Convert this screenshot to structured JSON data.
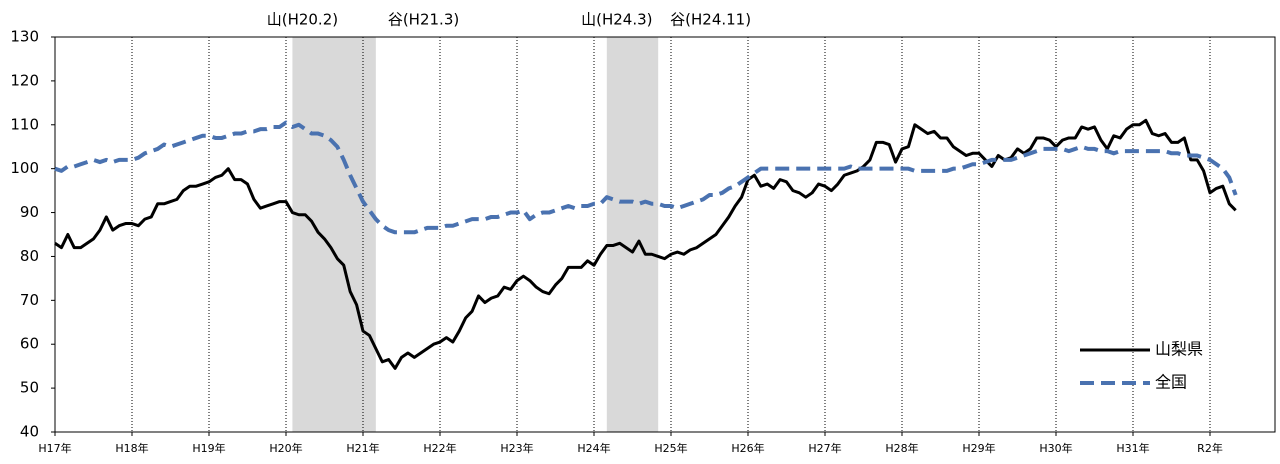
{
  "chart_data": {
    "type": "line",
    "categories": [
      "H17年",
      null,
      null,
      null,
      null,
      null,
      null,
      null,
      null,
      null,
      null,
      null,
      "H18年",
      null,
      null,
      null,
      null,
      null,
      null,
      null,
      null,
      null,
      null,
      null,
      "H19年",
      null,
      null,
      null,
      null,
      null,
      null,
      null,
      null,
      null,
      null,
      null,
      "H20年",
      null,
      null,
      null,
      null,
      null,
      null,
      null,
      null,
      null,
      null,
      null,
      "H21年",
      null,
      null,
      null,
      null,
      null,
      null,
      null,
      null,
      null,
      null,
      null,
      "H22年",
      null,
      null,
      null,
      null,
      null,
      null,
      null,
      null,
      null,
      null,
      null,
      "H23年",
      null,
      null,
      null,
      null,
      null,
      null,
      null,
      null,
      null,
      null,
      null,
      "H24年",
      null,
      null,
      null,
      null,
      null,
      null,
      null,
      null,
      null,
      null,
      null,
      "H25年",
      null,
      null,
      null,
      null,
      null,
      null,
      null,
      null,
      null,
      null,
      null,
      "H26年",
      null,
      null,
      null,
      null,
      null,
      null,
      null,
      null,
      null,
      null,
      null,
      "H27年",
      null,
      null,
      null,
      null,
      null,
      null,
      null,
      null,
      null,
      null,
      null,
      "H28年",
      null,
      null,
      null,
      null,
      null,
      null,
      null,
      null,
      null,
      null,
      null,
      "H29年",
      null,
      null,
      null,
      null,
      null,
      null,
      null,
      null,
      null,
      null,
      null,
      "H30年",
      null,
      null,
      null,
      null,
      null,
      null,
      null,
      null,
      null,
      null,
      null,
      "H31年",
      null,
      null,
      null,
      null,
      null,
      null,
      null,
      null,
      null,
      null,
      null,
      "R2年",
      null,
      null,
      null,
      null
    ],
    "series": [
      {
        "name": "山梨県",
        "color": "#000000",
        "dash": false,
        "values": [
          83,
          82,
          85,
          82,
          82,
          83,
          84,
          86,
          89,
          86,
          87,
          87.5,
          87.5,
          87,
          88.5,
          89,
          92,
          92,
          92.5,
          93,
          95,
          96,
          96,
          96.5,
          97,
          98,
          98.5,
          100,
          97.5,
          97.5,
          96.5,
          93,
          91,
          91.5,
          92,
          92.5,
          92.5,
          90,
          89.5,
          89.5,
          88,
          85.5,
          84,
          82,
          79.5,
          78,
          72,
          69,
          63,
          62,
          59,
          56,
          56.5,
          54.5,
          57,
          58,
          57,
          58,
          59,
          60,
          60.5,
          61.5,
          60.5,
          63,
          66,
          67.5,
          71,
          69.5,
          70.5,
          71,
          73,
          72.5,
          74.5,
          75.5,
          74.5,
          73,
          72,
          71.5,
          73.5,
          75,
          77.5,
          77.5,
          77.5,
          79,
          78,
          80.5,
          82.5,
          82.5,
          83,
          82,
          81,
          83.5,
          80.5,
          80.5,
          80,
          79.5,
          80.5,
          81,
          80.5,
          81.5,
          82,
          83,
          84,
          85,
          87,
          89,
          91.5,
          93.5,
          97.5,
          98.5,
          96,
          96.5,
          95.5,
          97.5,
          97,
          95,
          94.5,
          93.5,
          94.5,
          96.5,
          96,
          95,
          96.5,
          98.5,
          99,
          99.5,
          100.5,
          102,
          106,
          106,
          105.5,
          101.5,
          104.5,
          105,
          110,
          109,
          108,
          108.5,
          107,
          107,
          105,
          104,
          103,
          103.5,
          103.5,
          102,
          100.5,
          103,
          102,
          102.5,
          104.5,
          103.5,
          104.5,
          107,
          107,
          106.5,
          105,
          106.5,
          107,
          107,
          109.5,
          109,
          109.5,
          106.5,
          104.5,
          107.5,
          107,
          109,
          110,
          110,
          111,
          108,
          107.5,
          108,
          106,
          106,
          107,
          102,
          102,
          99.5,
          94.5,
          95.5,
          96,
          92,
          90.5
        ]
      },
      {
        "name": "全国",
        "color": "#4a72b0",
        "dash": true,
        "values": [
          100,
          99.5,
          100.5,
          100.5,
          101,
          101.5,
          102,
          101.5,
          102,
          101.5,
          102,
          102,
          102,
          102.5,
          103.5,
          104,
          104.5,
          105.5,
          105,
          105.5,
          106,
          106.5,
          107,
          107.5,
          107.5,
          107,
          107,
          107.5,
          108,
          108,
          108.5,
          108.5,
          109,
          109,
          109.5,
          109.5,
          110.5,
          109.5,
          110,
          109,
          108,
          108,
          107.5,
          106.5,
          105,
          102,
          98.5,
          95.5,
          92.5,
          90.5,
          88.5,
          87,
          86,
          85.5,
          85.5,
          85.5,
          85.5,
          86,
          86.5,
          86.5,
          86.5,
          87,
          87,
          87.5,
          88,
          88.5,
          88.5,
          88.5,
          89,
          89,
          89.5,
          90,
          90,
          90.5,
          88.5,
          89.5,
          90,
          90,
          90.5,
          91,
          91.5,
          91,
          91.5,
          91.5,
          92,
          92,
          93.5,
          93,
          92.5,
          92.5,
          92.5,
          92,
          92.5,
          92,
          92,
          91.5,
          91.5,
          91,
          91.5,
          92,
          92.5,
          93,
          94,
          94,
          94.5,
          95.5,
          96,
          97,
          98,
          99,
          100,
          100,
          100,
          100,
          100,
          100,
          100,
          100,
          100,
          100,
          100,
          100,
          100,
          100,
          100.5,
          100,
          100,
          100,
          100,
          100,
          100,
          100,
          100,
          100,
          99.5,
          99.5,
          99.5,
          99.5,
          99.5,
          99.5,
          100,
          100,
          100.5,
          101,
          101,
          101.5,
          102,
          102,
          102,
          102,
          102.5,
          103,
          103.5,
          104,
          104.5,
          104.5,
          104.5,
          104.5,
          104,
          104.5,
          105,
          104.5,
          104.5,
          104,
          104,
          103.5,
          104,
          104,
          104,
          104,
          104,
          104,
          104,
          104,
          103.5,
          103.5,
          103,
          103,
          103,
          102.5,
          102,
          101,
          100,
          98,
          94
        ]
      }
    ],
    "shaded_ranges": [
      {
        "from": 37,
        "to": 50,
        "peak_label": "山(H20.2)",
        "trough_label": "谷(H21.3)"
      },
      {
        "from": 86,
        "to": 94,
        "peak_label": "山(H24.3)",
        "trough_label": "谷(H24.11)"
      }
    ],
    "shade_color": "#d9d9d9",
    "ylim": [
      40,
      130
    ],
    "yticks": [
      40,
      50,
      60,
      70,
      80,
      90,
      100,
      110,
      120,
      130
    ],
    "vertical_grid": true,
    "legend_position": "lower right"
  }
}
